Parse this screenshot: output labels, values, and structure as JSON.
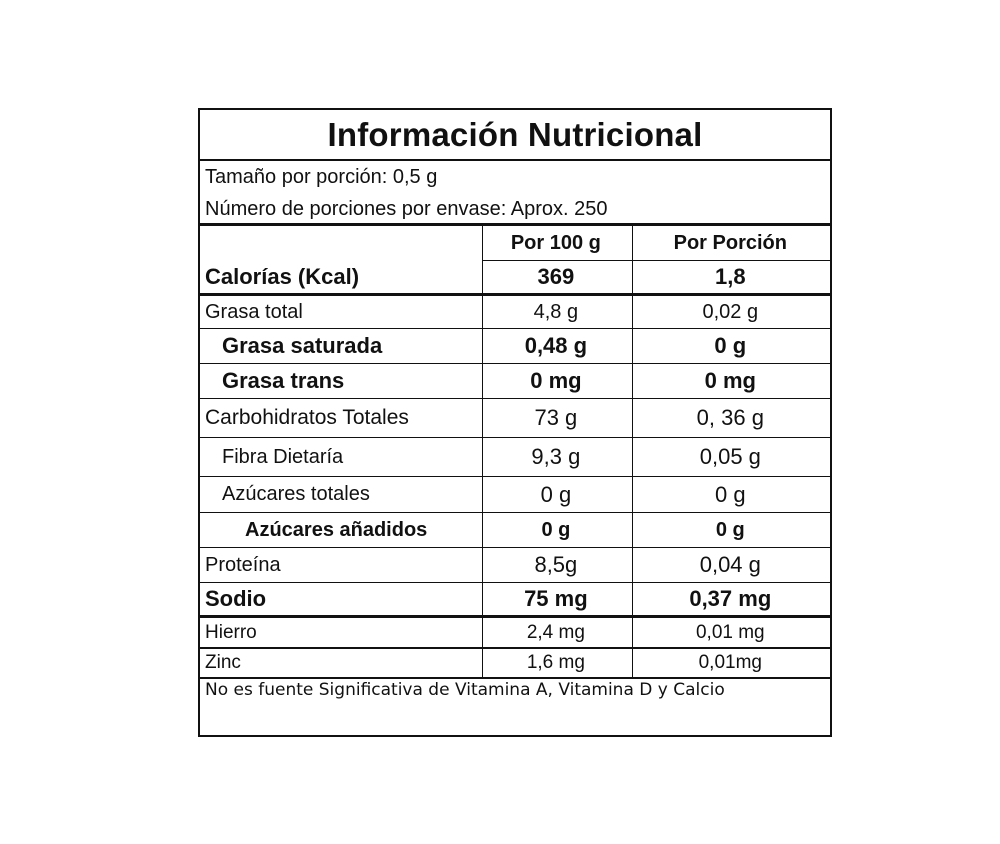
{
  "label": {
    "title": "Información Nutricional",
    "serving_size": "Tamaño por porción: 0,5 g",
    "servings_per_container": "Número de porciones por envase: Aprox. 250",
    "col_headers": {
      "per_100g": "Por 100 g",
      "per_serving": "Por Porción"
    },
    "calories": {
      "name": "Calorías (Kcal)",
      "per_100g": "369",
      "per_serving": "1,8"
    },
    "rows": [
      {
        "name": "Grasa total",
        "per_100g": "4,8 g",
        "per_serving": "0,02 g"
      },
      {
        "name": "Grasa saturada",
        "per_100g": "0,48 g",
        "per_serving": "0 g"
      },
      {
        "name": "Grasa trans",
        "per_100g": "0 mg",
        "per_serving": "0 mg"
      },
      {
        "name": "Carbohidratos Totales",
        "per_100g": "73 g",
        "per_serving": "0, 36 g"
      },
      {
        "name": "Fibra Dietaría",
        "per_100g": "9,3 g",
        "per_serving": "0,05 g"
      },
      {
        "name": "Azúcares totales",
        "per_100g": "0 g",
        "per_serving": "0 g"
      },
      {
        "name": "Azúcares añadidos",
        "per_100g": "0 g",
        "per_serving": "0 g"
      },
      {
        "name": "Proteína",
        "per_100g": "8,5g",
        "per_serving": "0,04 g"
      },
      {
        "name": "Sodio",
        "per_100g": "75 mg",
        "per_serving": "0,37 mg"
      },
      {
        "name": "Hierro",
        "per_100g": "2,4 mg",
        "per_serving": "0,01 mg"
      },
      {
        "name": "Zinc",
        "per_100g": "1,6 mg",
        "per_serving": "0,01mg"
      }
    ],
    "footer": "No es fuente Significativa de Vitamina A, Vitamina D y Calcio"
  }
}
